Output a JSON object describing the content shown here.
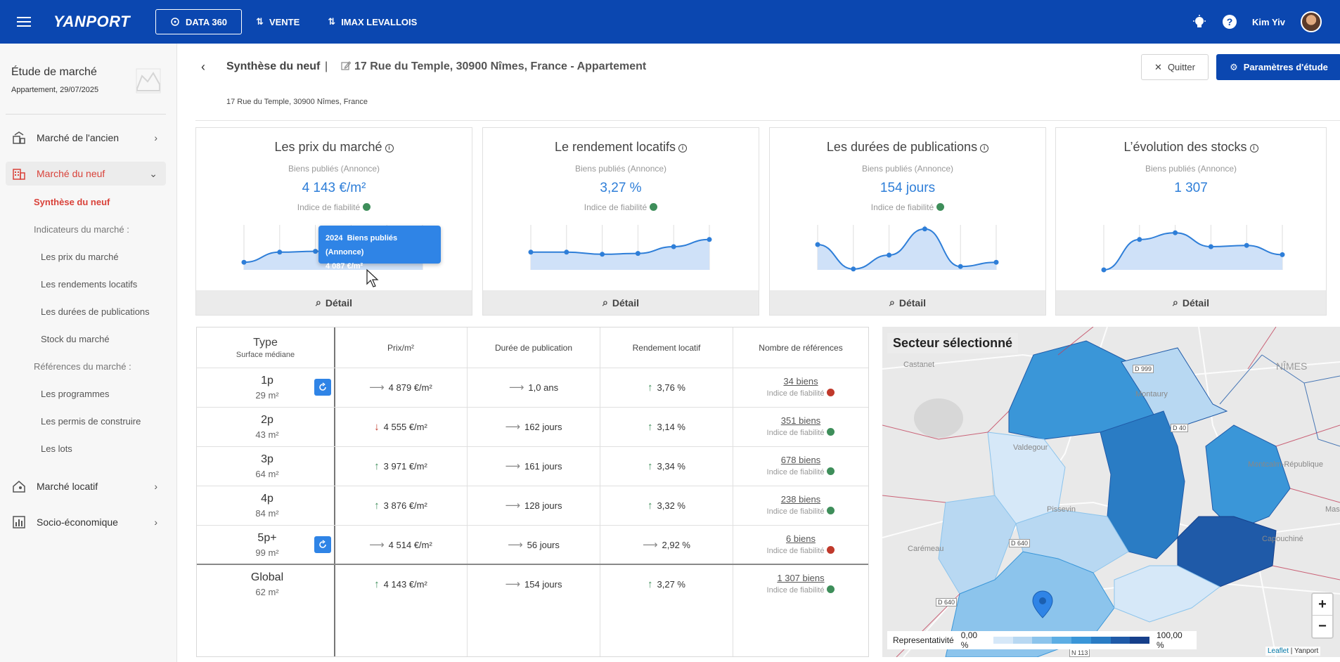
{
  "topbar": {
    "logo": "YANPORT",
    "nav": [
      {
        "label": "DATA 360",
        "icon": "data-icon",
        "active": true
      },
      {
        "label": "VENTE",
        "icon": "arrows-icon",
        "active": false
      },
      {
        "label": "IMAX LEVALLOIS",
        "icon": "arrows-icon",
        "active": false
      }
    ],
    "user_name": "Kim Yiv",
    "help": "?"
  },
  "sidebar": {
    "study_title": "Étude de marché",
    "study_sub": "Appartement, 29/07/2025",
    "items": [
      {
        "label": "Marché de l'ancien",
        "icon": "building-chart-icon"
      },
      {
        "label": "Marché du neuf",
        "icon": "building-icon"
      },
      {
        "label": "Marché locatif",
        "icon": "house-user-icon"
      },
      {
        "label": "Socio-économique",
        "icon": "bar-chart-icon"
      }
    ],
    "sub": {
      "synthese": "Synthèse du neuf",
      "indicateurs": "Indicateurs du marché :",
      "prix": "Les prix du marché",
      "rendements": "Les rendements locatifs",
      "durees": "Les durées de publications",
      "stock": "Stock du marché",
      "references": "Références du marché :",
      "programmes": "Les programmes",
      "permis": "Les permis de construire",
      "lots": "Les lots"
    }
  },
  "header": {
    "title": "Synthèse du neuf",
    "separator": "|",
    "address": "17 Rue du Temple, 30900 Nîmes, France - Appartement",
    "sub_address": "17 Rue du Temple, 30900 Nîmes, France",
    "quit": "Quitter",
    "params": "Paramètres d'étude"
  },
  "cards": [
    {
      "title": "Les prix du marché",
      "sub": "Biens publiés (Annonce)",
      "value": "4 143 €/m²",
      "rel": "Indice de fiabilité",
      "detail": "Détail",
      "spark": [
        0.18,
        0.42,
        0.44,
        0.46,
        0.5,
        0.52
      ]
    },
    {
      "title": "Le rendement locatifs",
      "sub": "Biens publiés (Annonce)",
      "value": "3,27 %",
      "rel": "Indice de fiabilité",
      "detail": "Détail",
      "spark": [
        0.42,
        0.42,
        0.37,
        0.39,
        0.55,
        0.72
      ]
    },
    {
      "title": "Les durées de publications",
      "sub": "Biens publiés (Annonce)",
      "value": "154 jours",
      "rel": "Indice de fiabilité",
      "detail": "Détail",
      "spark": [
        0.6,
        0.02,
        0.35,
        0.97,
        0.08,
        0.18
      ]
    },
    {
      "title": "L’évolution des stocks",
      "sub": "Biens publiés (Annonce)",
      "value": "1 307",
      "rel": "",
      "detail": "Détail",
      "spark": [
        0.0,
        0.72,
        0.88,
        0.55,
        0.58,
        0.36
      ]
    }
  ],
  "tooltip": {
    "year": "2024",
    "label": "Biens publiés (Annonce)",
    "value": "4 087 €/m²"
  },
  "table": {
    "headers": {
      "type": "Type",
      "type_sub": "Surface médiane",
      "prix": "Prix/m²",
      "duree": "Durée de publication",
      "rendement": "Rendement locatif",
      "refs": "Nombre de références"
    },
    "rows": [
      {
        "type": "1p",
        "surface": "29 m²",
        "refresh": true,
        "prix": "4 879 €/m²",
        "prix_trend": "right",
        "duree": "1,0 ans",
        "duree_trend": "right",
        "rendement": "3,76 %",
        "rend_trend": "up",
        "refs": "34 biens",
        "rel": "Indice de fiabilité",
        "rel_color": "red"
      },
      {
        "type": "2p",
        "surface": "43 m²",
        "refresh": false,
        "prix": "4 555 €/m²",
        "prix_trend": "down",
        "duree": "162 jours",
        "duree_trend": "right",
        "rendement": "3,14 %",
        "rend_trend": "up",
        "refs": "351 biens",
        "rel": "Indice de fiabilité",
        "rel_color": "green"
      },
      {
        "type": "3p",
        "surface": "64 m²",
        "refresh": false,
        "prix": "3 971 €/m²",
        "prix_trend": "up",
        "duree": "161 jours",
        "duree_trend": "right",
        "rendement": "3,34 %",
        "rend_trend": "up",
        "refs": "678 biens",
        "rel": "Indice de fiabilité",
        "rel_color": "green"
      },
      {
        "type": "4p",
        "surface": "84 m²",
        "refresh": false,
        "prix": "3 876 €/m²",
        "prix_trend": "up",
        "duree": "128 jours",
        "duree_trend": "right",
        "rendement": "3,32 %",
        "rend_trend": "up",
        "refs": "238 biens",
        "rel": "Indice de fiabilité",
        "rel_color": "green"
      },
      {
        "type": "5p+",
        "surface": "99 m²",
        "refresh": true,
        "prix": "4 514 €/m²",
        "prix_trend": "right",
        "duree": "56 jours",
        "duree_trend": "right",
        "rendement": "2,92 %",
        "rend_trend": "right",
        "refs": "6 biens",
        "rel": "Indice de fiabilité",
        "rel_color": "red"
      },
      {
        "type": "Global",
        "surface": "62 m²",
        "refresh": false,
        "prix": "4 143 €/m²",
        "prix_trend": "up",
        "duree": "154 jours",
        "duree_trend": "right",
        "rendement": "3,27 %",
        "rend_trend": "up",
        "refs": "1 307 biens",
        "rel": "Indice de fiabilité",
        "rel_color": "green"
      }
    ]
  },
  "map": {
    "title": "Secteur sélectionné",
    "legend_label": "Representativité",
    "legend_min": "0,00 %",
    "legend_max": "100,00 %",
    "legend_colors": [
      "#d6e8f8",
      "#b8d8f2",
      "#8cc4ec",
      "#5daee4",
      "#3a96d8",
      "#2a7cc4",
      "#1f5aa8",
      "#163f8a"
    ],
    "attribution_leaflet": "Leaflet",
    "attribution_sep": " | Yanport",
    "zoom_in": "+",
    "zoom_out": "−",
    "labels": [
      "NÎMES",
      "Castanet",
      "Montaury",
      "Valdegour",
      "Pissevin",
      "Carémeau",
      "Capouchiné",
      "Mas",
      "Montcalm-République"
    ],
    "roads": [
      "D 999",
      "D 40",
      "D 640",
      "D 640",
      "N 113"
    ]
  },
  "colors": {
    "brand": "#0b47b0",
    "accent": "#2e7ed8",
    "active_red": "#d9423a",
    "green": "#3e8e5a",
    "red": "#c0392b"
  }
}
